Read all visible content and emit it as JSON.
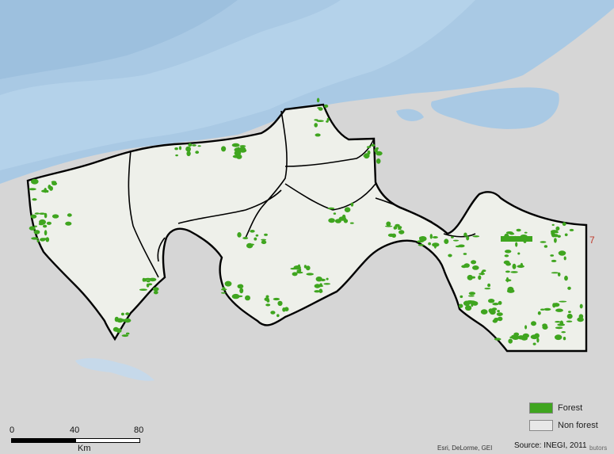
{
  "map": {
    "colors": {
      "sea": "#9fc2de",
      "sea_light": "#b7d3ea",
      "land": "#d3d3d3",
      "state": "#eef0ea",
      "forest": "#3fa51f",
      "water": "#c8dcef",
      "border": "#000000"
    },
    "legend": {
      "forest_label": "Forest",
      "nonforest_label": "Non forest",
      "forest_color": "#3fa51f",
      "nonforest_color": "#e8e8e8"
    },
    "scale": {
      "tick0": "0",
      "tick1": "40",
      "tick2": "80",
      "unit": "Km"
    },
    "attribution": "Esri, DeLorme, GEI",
    "attribution_tail": "butors",
    "source": "Source: INEGI, 2011",
    "grid_label": "7"
  }
}
